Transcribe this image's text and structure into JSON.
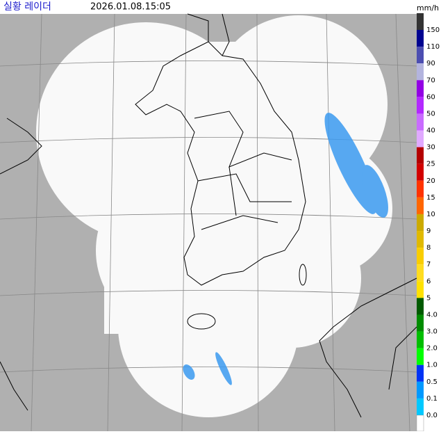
{
  "header": {
    "title": "실황 레이더",
    "time": "2026.01.08.15:05",
    "unit": "mm/h"
  },
  "legend": {
    "items": [
      {
        "label": "150",
        "color": "#333333"
      },
      {
        "label": "110",
        "color": "#000390"
      },
      {
        "label": "90",
        "color": "#4c4eb1"
      },
      {
        "label": "70",
        "color": "#b3b4de"
      },
      {
        "label": "60",
        "color": "#9300e4"
      },
      {
        "label": "50",
        "color": "#b329ff"
      },
      {
        "label": "40",
        "color": "#c96cff"
      },
      {
        "label": "30",
        "color": "#e0a9ff"
      },
      {
        "label": "25",
        "color": "#b40000"
      },
      {
        "label": "20",
        "color": "#d20000"
      },
      {
        "label": "15",
        "color": "#ff3300"
      },
      {
        "label": "10",
        "color": "#ff6600"
      },
      {
        "label": "9",
        "color": "#ccaa00"
      },
      {
        "label": "8",
        "color": "#e0b900"
      },
      {
        "label": "7",
        "color": "#f9cd00"
      },
      {
        "label": "6",
        "color": "#ffdc1f"
      },
      {
        "label": "5",
        "color": "#ffe100"
      },
      {
        "label": "4.0",
        "color": "#005a00"
      },
      {
        "label": "3.0",
        "color": "#008c00"
      },
      {
        "label": "2.0",
        "color": "#00be00"
      },
      {
        "label": "1.0",
        "color": "#00ff00"
      },
      {
        "label": "0.5",
        "color": "#0033f5"
      },
      {
        "label": "0.1",
        "color": "#0099ff"
      },
      {
        "label": "0.0",
        "color": "#00c8ff"
      }
    ]
  }
}
